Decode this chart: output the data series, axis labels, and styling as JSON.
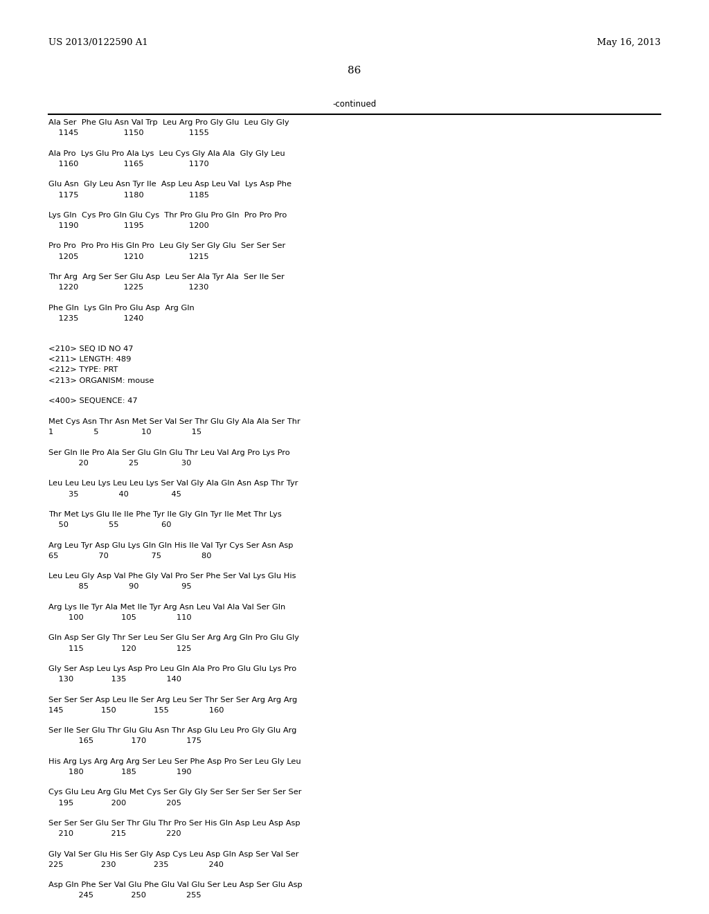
{
  "header_left": "US 2013/0122590 A1",
  "header_right": "May 16, 2013",
  "page_number": "86",
  "continued_label": "-continued",
  "lines": [
    [
      "Ala Ser  Phe Glu Asn Val Trp  Leu Arg Pro Gly Glu  Leu Gly Gly",
      "    1145                  1150                  1155"
    ],
    null,
    [
      "Ala Pro  Lys Glu Pro Ala Lys  Leu Cys Gly Ala Ala  Gly Gly Leu",
      "    1160                  1165                  1170"
    ],
    null,
    [
      "Glu Asn  Gly Leu Asn Tyr Ile  Asp Leu Asp Leu Val  Lys Asp Phe",
      "    1175                  1180                  1185"
    ],
    null,
    [
      "Lys Gln  Cys Pro Gln Glu Cys  Thr Pro Glu Pro Gln  Pro Pro Pro",
      "    1190                  1195                  1200"
    ],
    null,
    [
      "Pro Pro  Pro Pro His Gln Pro  Leu Gly Ser Gly Glu  Ser Ser Ser",
      "    1205                  1210                  1215"
    ],
    null,
    [
      "Thr Arg  Arg Ser Ser Glu Asp  Leu Ser Ala Tyr Ala  Ser Ile Ser",
      "    1220                  1225                  1230"
    ],
    null,
    [
      "Phe Gln  Lys Gln Pro Glu Asp  Arg Gln",
      "    1235                  1240"
    ],
    null,
    null,
    [
      "<210> SEQ ID NO 47",
      null
    ],
    [
      "<211> LENGTH: 489",
      null
    ],
    [
      "<212> TYPE: PRT",
      null
    ],
    [
      "<213> ORGANISM: mouse",
      null
    ],
    null,
    [
      "<400> SEQUENCE: 47",
      null
    ],
    null,
    [
      "Met Cys Asn Thr Asn Met Ser Val Ser Thr Glu Gly Ala Ala Ser Thr",
      "1                5                 10                15"
    ],
    null,
    [
      "Ser Gln Ile Pro Ala Ser Glu Gln Glu Thr Leu Val Arg Pro Lys Pro",
      "            20                25                 30"
    ],
    null,
    [
      "Leu Leu Leu Lys Leu Leu Lys Ser Val Gly Ala Gln Asn Asp Thr Tyr",
      "        35                40                 45"
    ],
    null,
    [
      "Thr Met Lys Glu Ile Ile Phe Tyr Ile Gly Gln Tyr Ile Met Thr Lys",
      "    50                55                 60"
    ],
    null,
    [
      "Arg Leu Tyr Asp Glu Lys Gln Gln His Ile Val Tyr Cys Ser Asn Asp",
      "65                70                 75                80"
    ],
    null,
    [
      "Leu Leu Gly Asp Val Phe Gly Val Pro Ser Phe Ser Val Lys Glu His",
      "            85                90                 95"
    ],
    null,
    [
      "Arg Lys Ile Tyr Ala Met Ile Tyr Arg Asn Leu Val Ala Val Ser Gln",
      "        100               105                110"
    ],
    null,
    [
      "Gln Asp Ser Gly Thr Ser Leu Ser Glu Ser Arg Arg Gln Pro Glu Gly",
      "        115               120                125"
    ],
    null,
    [
      "Gly Ser Asp Leu Lys Asp Pro Leu Gln Ala Pro Pro Glu Glu Lys Pro",
      "    130               135                140"
    ],
    null,
    [
      "Ser Ser Ser Asp Leu Ile Ser Arg Leu Ser Thr Ser Ser Arg Arg Arg",
      "145               150               155                160"
    ],
    null,
    [
      "Ser Ile Ser Glu Thr Glu Glu Asn Thr Asp Glu Leu Pro Gly Glu Arg",
      "            165               170                175"
    ],
    null,
    [
      "His Arg Lys Arg Arg Arg Ser Leu Ser Phe Asp Pro Ser Leu Gly Leu",
      "        180               185                190"
    ],
    null,
    [
      "Cys Glu Leu Arg Glu Met Cys Ser Gly Gly Ser Ser Ser Ser Ser Ser",
      "    195               200                205"
    ],
    null,
    [
      "Ser Ser Ser Glu Ser Thr Glu Thr Pro Ser His Gln Asp Leu Asp Asp",
      "    210               215                220"
    ],
    null,
    [
      "Gly Val Ser Glu His Ser Gly Asp Cys Leu Asp Gln Asp Ser Val Ser",
      "225               230               235                240"
    ],
    null,
    [
      "Asp Gln Phe Ser Val Glu Phe Glu Val Glu Ser Leu Asp Ser Glu Asp",
      "            245               250                255"
    ]
  ]
}
